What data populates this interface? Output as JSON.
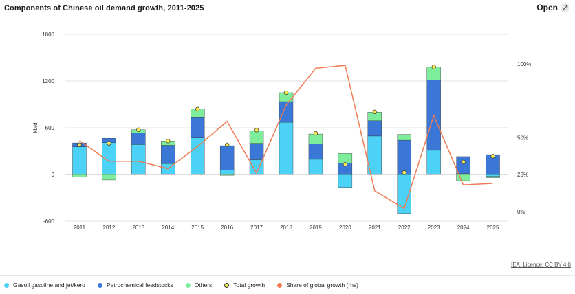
{
  "header": {
    "title": "Components of Chinese oil demand growth, 2011-2025",
    "open_label": "Open"
  },
  "footer": {
    "licence": "IEA. Licence: CC BY 4.0"
  },
  "colors": {
    "gasoil": "#4dd2f7",
    "petchem": "#3a77d6",
    "others": "#7ded9b",
    "total": "#f7ea51",
    "share": "#f07a52",
    "grid": "#e0e0e0"
  },
  "chart_data": {
    "type": "bar",
    "title": "Components of Chinese oil demand growth, 2011-2025",
    "xlabel": "",
    "ylabel": "kb/d",
    "ylim": [
      -600,
      1800
    ],
    "yticks": [
      -600,
      0,
      600,
      1200,
      1800
    ],
    "y2lim": [
      -0.066,
      1.2
    ],
    "y2ticks": [
      0,
      0.25,
      0.5,
      1.0
    ],
    "y2ticklabels": [
      "0%",
      "25%",
      "50%",
      "100%"
    ],
    "stacked": true,
    "categories": [
      "2011",
      "2012",
      "2013",
      "2014",
      "2015",
      "2016",
      "2017",
      "2018",
      "2019",
      "2020",
      "2021",
      "2022",
      "2023",
      "2024",
      "2025"
    ],
    "series": [
      {
        "name": "Gasoil gasoline and jet/kero",
        "type": "bar",
        "values": [
          355,
          410,
          385,
          140,
          470,
          60,
          190,
          670,
          195,
          -165,
          495,
          -500,
          310,
          10,
          -25
        ]
      },
      {
        "name": "Petrochemical feedstocks",
        "type": "bar",
        "values": [
          50,
          55,
          150,
          235,
          260,
          310,
          210,
          265,
          200,
          145,
          195,
          440,
          905,
          220,
          255
        ]
      },
      {
        "name": "Others",
        "type": "bar",
        "values": [
          -30,
          -70,
          40,
          55,
          110,
          -10,
          160,
          115,
          125,
          125,
          110,
          75,
          165,
          -80,
          -15
        ]
      },
      {
        "name": "Total growth",
        "type": "scatter",
        "values": [
          380,
          400,
          575,
          430,
          840,
          380,
          570,
          1050,
          530,
          130,
          805,
          25,
          1380,
          160,
          235
        ]
      },
      {
        "name": "Share of global growth (rhs)",
        "type": "line",
        "axis": "rhs",
        "values": [
          0.48,
          0.34,
          0.34,
          0.29,
          0.44,
          0.61,
          0.26,
          0.72,
          0.97,
          0.99,
          0.14,
          0.02,
          0.65,
          0.18,
          0.19
        ]
      }
    ],
    "legend": [
      "Gasoil gasoline and jet/kero",
      "Petrochemical feedstocks",
      "Others",
      "Total growth",
      "Share of global growth (rhs)"
    ],
    "legend_position": "bottom-left",
    "grid": true
  }
}
